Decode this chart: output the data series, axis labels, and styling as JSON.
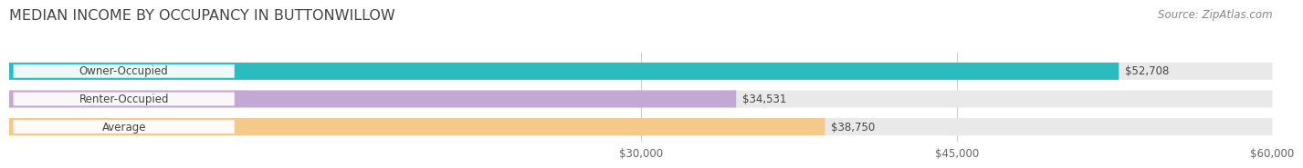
{
  "title": "MEDIAN INCOME BY OCCUPANCY IN BUTTONWILLOW",
  "source": "Source: ZipAtlas.com",
  "categories": [
    "Owner-Occupied",
    "Renter-Occupied",
    "Average"
  ],
  "values": [
    52708,
    34531,
    38750
  ],
  "bar_colors": [
    "#2bbcbf",
    "#c4a8d4",
    "#f5c98a"
  ],
  "bar_bg_color": "#e9e9e9",
  "value_labels": [
    "$52,708",
    "$34,531",
    "$38,750"
  ],
  "xmin": 0,
  "xmax": 60000,
  "xticks": [
    30000,
    45000,
    60000
  ],
  "xtick_labels": [
    "$30,000",
    "$45,000",
    "$60,000"
  ],
  "title_fontsize": 11.5,
  "source_fontsize": 8.5,
  "label_fontsize": 8.5,
  "value_fontsize": 8.5,
  "bar_height": 0.62,
  "bar_gap": 1.0,
  "background_color": "#ffffff",
  "grid_color": "#cccccc",
  "text_color": "#444444",
  "source_color": "#888888"
}
